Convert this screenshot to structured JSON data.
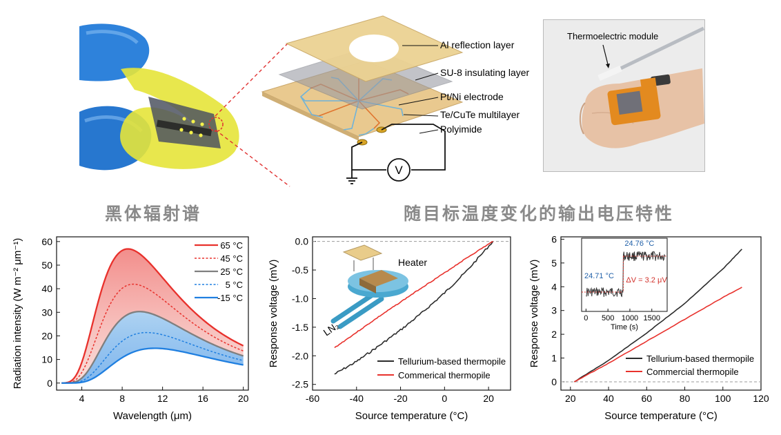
{
  "top": {
    "layers": {
      "al": "Al reflection layer",
      "su8": "SU-8 insulating layer",
      "electrode": "Pt/Ni electrode",
      "multilayer": "Te/CuTe multilayer",
      "substrate": "Polyimide"
    },
    "voltmeter_symbol": "V",
    "wrist_label": "Thermoelectric module"
  },
  "section_titles": {
    "left": "黑体辐射谱",
    "right": "随目标温度变化的输出电压特性"
  },
  "colors": {
    "red": "#e8312c",
    "blue": "#1f7fe0",
    "gray": "#7f7f7f",
    "dark": "#2b2b2b",
    "annot_blue": "#1f5fa8",
    "annot_red": "#d2302a"
  },
  "chart_data": [
    {
      "type": "area",
      "xlabel": "Wavelength (μm)",
      "ylabel": "Radiation intensity (W m⁻² μm⁻¹)",
      "xlim": [
        1.5,
        20.5
      ],
      "ylim": [
        -3,
        62
      ],
      "xticks": [
        4,
        8,
        12,
        16,
        20
      ],
      "yticks": [
        0,
        10,
        20,
        30,
        40,
        50,
        60
      ],
      "legend_position": "top-right",
      "series": [
        {
          "name": "65 °C",
          "temp_c": 65,
          "style": "solid",
          "color": "red"
        },
        {
          "name": "45 °C",
          "temp_c": 45,
          "style": "dashed",
          "color": "red"
        },
        {
          "name": "25 °C",
          "temp_c": 25,
          "style": "solid",
          "color": "gray"
        },
        {
          "name": "5 °C",
          "temp_c": 5,
          "style": "dashed",
          "color": "blue"
        },
        {
          "name": "-15 °C",
          "temp_c": -15,
          "style": "solid",
          "color": "blue"
        }
      ]
    },
    {
      "type": "line",
      "xlabel": "Source temperature (°C)",
      "ylabel": "Response voltage (mV)",
      "xlim": [
        -60,
        30
      ],
      "ylim": [
        -2.6,
        0.08
      ],
      "xticks": [
        -60,
        -40,
        -20,
        0,
        20
      ],
      "yticks": [
        0.0,
        -0.5,
        -1.0,
        -1.5,
        -2.0,
        -2.5
      ],
      "legend_position": "bottom-right",
      "inset_labels": {
        "heater": "Heater",
        "ln2": "LN₂"
      },
      "series": [
        {
          "name": "Tellurium-based thermopile",
          "color": "dark",
          "x": [
            -50,
            -40,
            -30,
            -20,
            -10,
            0,
            10,
            22
          ],
          "y": [
            -2.32,
            -2.1,
            -1.83,
            -1.55,
            -1.24,
            -0.9,
            -0.52,
            0.0
          ]
        },
        {
          "name": "Commerical thermopile",
          "color": "red",
          "x": [
            -50,
            -40,
            -30,
            -20,
            -10,
            0,
            10,
            22
          ],
          "y": [
            -1.86,
            -1.59,
            -1.32,
            -1.06,
            -0.8,
            -0.55,
            -0.29,
            0.0
          ]
        }
      ]
    },
    {
      "type": "line",
      "xlabel": "Source temperature (°C)",
      "ylabel": "Response voltage (mV)",
      "xlim": [
        15,
        120
      ],
      "ylim": [
        -0.35,
        6.1
      ],
      "xticks": [
        20,
        40,
        60,
        80,
        100,
        120
      ],
      "yticks": [
        0,
        1,
        2,
        3,
        4,
        5,
        6
      ],
      "legend_position": "bottom-right",
      "series": [
        {
          "name": "Tellurium-based thermopile",
          "color": "dark",
          "x": [
            22,
            40,
            60,
            80,
            100,
            110
          ],
          "y": [
            0.0,
            0.9,
            2.05,
            3.3,
            4.75,
            5.58
          ]
        },
        {
          "name": "Commercial thermopile",
          "color": "red",
          "x": [
            22,
            40,
            60,
            80,
            100,
            110
          ],
          "y": [
            0.0,
            0.78,
            1.71,
            2.63,
            3.55,
            3.98
          ]
        }
      ],
      "inset": {
        "xlabel": "Time (s)",
        "xticks": [
          0,
          500,
          1000,
          1500
        ],
        "xlim": [
          -100,
          1850
        ],
        "step_time_s": 850,
        "level_before": "24.71 °C",
        "level_after": "24.76 °C",
        "delta": "ΔV = 3.2 μV"
      }
    }
  ]
}
